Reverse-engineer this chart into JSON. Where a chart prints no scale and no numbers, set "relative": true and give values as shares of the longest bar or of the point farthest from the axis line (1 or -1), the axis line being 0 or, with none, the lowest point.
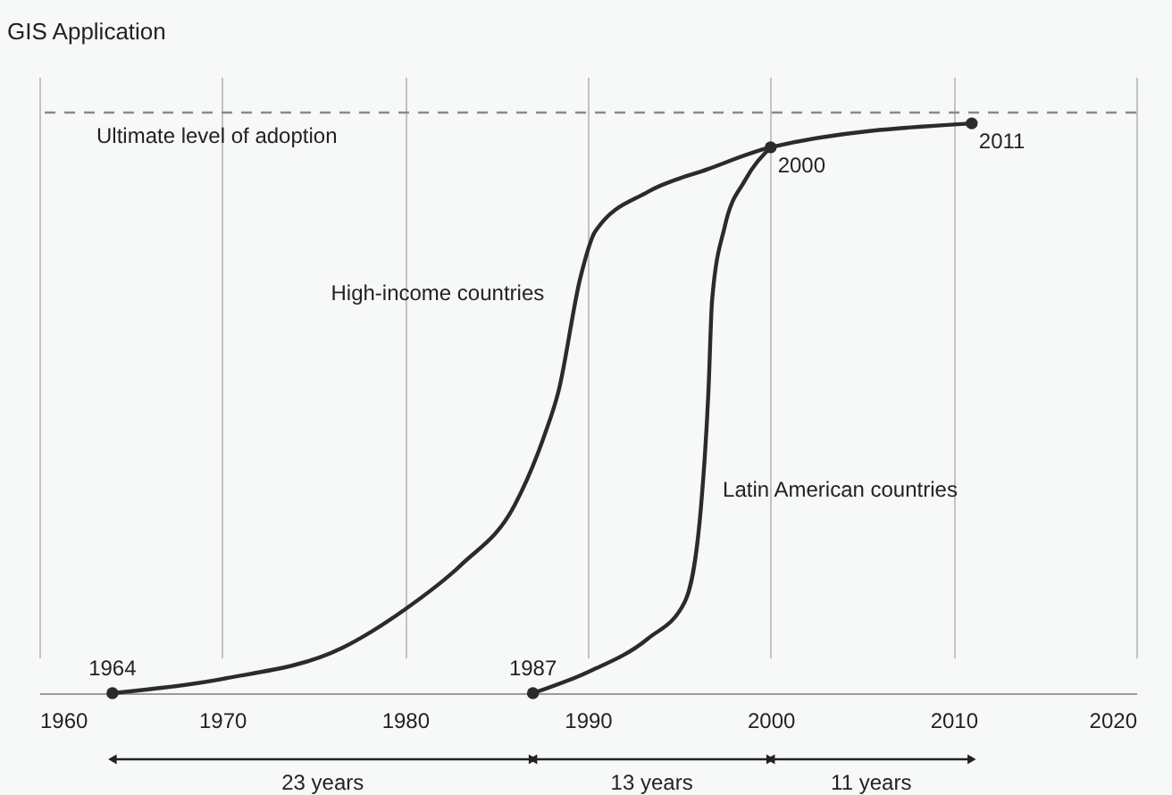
{
  "chart_data": {
    "type": "line",
    "title": "GIS Application",
    "relative": true,
    "series": [
      {
        "name": "High-income countries",
        "color": "#2b2b2b",
        "x": [
          1964,
          1970,
          1976.6,
          1980,
          1983.1,
          1986,
          1987.6,
          1988.4,
          1989.6,
          1990.4,
          1993.3,
          1996.6,
          2000,
          2011
        ],
        "values": [
          0,
          0.025,
          0.08,
          0.147,
          0.226,
          0.33,
          0.45,
          0.53,
          0.73,
          0.81,
          0.88,
          0.92,
          0.958,
          1
        ]
      },
      {
        "name": "Latin American countries",
        "color": "#2b2b2b",
        "x": [
          1987,
          1990,
          1993.3,
          1995.3,
          1996.2,
          1996.6,
          1996.8,
          1997.5,
          1998.6,
          2000
        ],
        "values": [
          0,
          0.037,
          0.096,
          0.16,
          0.33,
          0.53,
          0.69,
          0.82,
          0.9,
          0.958
        ]
      }
    ],
    "xlim": [
      1960,
      2020
    ],
    "xticks": [
      1960,
      1970,
      1980,
      1990,
      2000,
      2010,
      2020
    ],
    "grid": "x",
    "line_style": "solid",
    "ref_lines": [
      {
        "axis": "y",
        "value": 1.019,
        "label": "Ultimate level of adoption",
        "color": "#8a8a8a",
        "line_style": "dashed"
      }
    ],
    "annotations": [
      {
        "text": "1964",
        "x": 1964,
        "y": 0
      },
      {
        "text": "1987",
        "x": 1987,
        "y": 0
      },
      {
        "text": "2000",
        "x": 2000,
        "y": 0.958
      },
      {
        "text": "2011",
        "x": 2011,
        "y": 1
      },
      "23 years",
      "13 years",
      "11 years"
    ]
  }
}
